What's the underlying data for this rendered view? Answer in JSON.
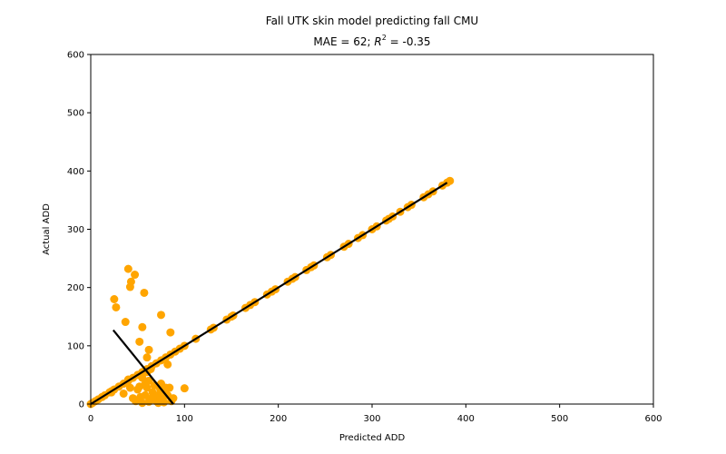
{
  "chart_data": {
    "type": "scatter",
    "title": "Fall UTK skin model predicting fall CMU",
    "subtitle_prefix": "MAE = 62; ",
    "subtitle_r": "R",
    "subtitle_exp": "2",
    "subtitle_suffix": " = -0.35",
    "xlabel": "Predicted ADD",
    "ylabel": "Actual ADD",
    "xlim": [
      0,
      600
    ],
    "ylim": [
      0,
      600
    ],
    "xticks": [
      0,
      100,
      200,
      300,
      400,
      500,
      600
    ],
    "yticks": [
      0,
      100,
      200,
      300,
      400,
      500,
      600
    ],
    "grid": false,
    "colors": {
      "points": "#ffa500",
      "lines": "#000000"
    },
    "points": [
      [
        0,
        0
      ],
      [
        2,
        2
      ],
      [
        5,
        5
      ],
      [
        8,
        8
      ],
      [
        12,
        12
      ],
      [
        15,
        15
      ],
      [
        20,
        20
      ],
      [
        22,
        22
      ],
      [
        25,
        25
      ],
      [
        30,
        30
      ],
      [
        35,
        35
      ],
      [
        40,
        40
      ],
      [
        45,
        45
      ],
      [
        50,
        50
      ],
      [
        55,
        55
      ],
      [
        60,
        60
      ],
      [
        65,
        65
      ],
      [
        70,
        70
      ],
      [
        75,
        75
      ],
      [
        80,
        80
      ],
      [
        85,
        85
      ],
      [
        90,
        90
      ],
      [
        95,
        95
      ],
      [
        100,
        100
      ],
      [
        112,
        112
      ],
      [
        128,
        128
      ],
      [
        131,
        131
      ],
      [
        145,
        145
      ],
      [
        150,
        150
      ],
      [
        152,
        152
      ],
      [
        165,
        165
      ],
      [
        170,
        170
      ],
      [
        175,
        175
      ],
      [
        188,
        188
      ],
      [
        193,
        193
      ],
      [
        197,
        197
      ],
      [
        210,
        210
      ],
      [
        215,
        215
      ],
      [
        218,
        218
      ],
      [
        230,
        230
      ],
      [
        235,
        235
      ],
      [
        238,
        238
      ],
      [
        252,
        252
      ],
      [
        256,
        256
      ],
      [
        270,
        270
      ],
      [
        275,
        275
      ],
      [
        285,
        285
      ],
      [
        290,
        290
      ],
      [
        300,
        300
      ],
      [
        305,
        305
      ],
      [
        315,
        315
      ],
      [
        318,
        318
      ],
      [
        322,
        322
      ],
      [
        330,
        330
      ],
      [
        338,
        338
      ],
      [
        342,
        342
      ],
      [
        355,
        355
      ],
      [
        360,
        360
      ],
      [
        365,
        365
      ],
      [
        375,
        375
      ],
      [
        380,
        380
      ],
      [
        383,
        383
      ],
      [
        25,
        180
      ],
      [
        27,
        166
      ],
      [
        37,
        141
      ],
      [
        40,
        232
      ],
      [
        42,
        201
      ],
      [
        43,
        210
      ],
      [
        47,
        222
      ],
      [
        52,
        107
      ],
      [
        55,
        132
      ],
      [
        57,
        191
      ],
      [
        60,
        80
      ],
      [
        62,
        93
      ],
      [
        75,
        153
      ],
      [
        82,
        68
      ],
      [
        85,
        123
      ],
      [
        100,
        27
      ],
      [
        22,
        20
      ],
      [
        35,
        18
      ],
      [
        40,
        42
      ],
      [
        42,
        28
      ],
      [
        45,
        10
      ],
      [
        48,
        5
      ],
      [
        50,
        25
      ],
      [
        52,
        30
      ],
      [
        53,
        12
      ],
      [
        55,
        45
      ],
      [
        58,
        15
      ],
      [
        60,
        28
      ],
      [
        62,
        40
      ],
      [
        65,
        8
      ],
      [
        66,
        20
      ],
      [
        68,
        32
      ],
      [
        70,
        5
      ],
      [
        72,
        15
      ],
      [
        74,
        26
      ],
      [
        75,
        35
      ],
      [
        76,
        10
      ],
      [
        78,
        3
      ],
      [
        79,
        22
      ],
      [
        80,
        28
      ],
      [
        82,
        15
      ],
      [
        84,
        28
      ],
      [
        86,
        5
      ],
      [
        88,
        10
      ],
      [
        55,
        2
      ],
      [
        62,
        4
      ],
      [
        66,
        12
      ],
      [
        72,
        2
      ],
      [
        60,
        55
      ],
      [
        64,
        60
      ],
      [
        58,
        34
      ]
    ],
    "lines": [
      {
        "x": [
          0,
          380
        ],
        "y": [
          0,
          380
        ]
      },
      {
        "x": [
          24,
          88
        ],
        "y": [
          127,
          0
        ]
      }
    ]
  }
}
